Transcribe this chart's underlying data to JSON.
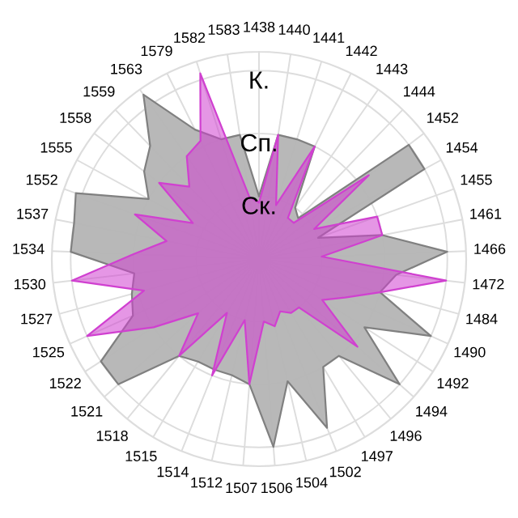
{
  "chart_data": {
    "type": "radar",
    "categories": [
      "1438",
      "1440",
      "1441",
      "1442",
      "1443",
      "1444",
      "1452",
      "1454",
      "1455",
      "1461",
      "1466",
      "1472",
      "1484",
      "1490",
      "1492",
      "1494",
      "1496",
      "1497",
      "1502",
      "1504",
      "1506",
      "1507",
      "1512",
      "1514",
      "1515",
      "1518",
      "1521",
      "1522",
      "1525",
      "1527",
      "1530",
      "1534",
      "1537",
      "1552",
      "1555",
      "1558",
      "1559",
      "1563",
      "1579",
      "1582",
      "1583"
    ],
    "series": [
      {
        "color": "#b4b4b4",
        "values": [
          1.0,
          2.0,
          2.0,
          2.0,
          1.0,
          0.9,
          3.0,
          3.0,
          1.0,
          2.0,
          3.0,
          2.2,
          2.0,
          3.0,
          2.0,
          3.0,
          2.0,
          2.0,
          2.9,
          2.0,
          3.0,
          2.0,
          1.9,
          1.9,
          1.9,
          2.0,
          3.0,
          3.0,
          2.2,
          2.1,
          2.0,
          3.0,
          3.0,
          3.1,
          2.0,
          2.3,
          2.5,
          3.2,
          2.3,
          2.0,
          2.0
        ]
      },
      {
        "color": "#d040d0",
        "values": [
          0.9,
          2.0,
          0.9,
          2.0,
          0.8,
          0.8,
          2.2,
          1.0,
          2.0,
          2.0,
          1.0,
          3.0,
          2.0,
          1.5,
          1.2,
          2.1,
          1.0,
          1.0,
          0.9,
          1.1,
          1.0,
          2.0,
          1.0,
          2.0,
          1.0,
          2.0,
          1.3,
          2.0,
          3.0,
          1.9,
          3.0,
          2.0,
          1.5,
          2.1,
          1.2,
          2.0,
          1.6,
          2.0,
          2.1,
          3.1,
          1.0
        ]
      }
    ],
    "ylim": [
      0,
      3.3
    ],
    "yticks": [
      {
        "value": 1,
        "label": "Ск."
      },
      {
        "value": 2,
        "label": "Сп."
      },
      {
        "value": 3,
        "label": "К."
      }
    ],
    "grid": true
  }
}
